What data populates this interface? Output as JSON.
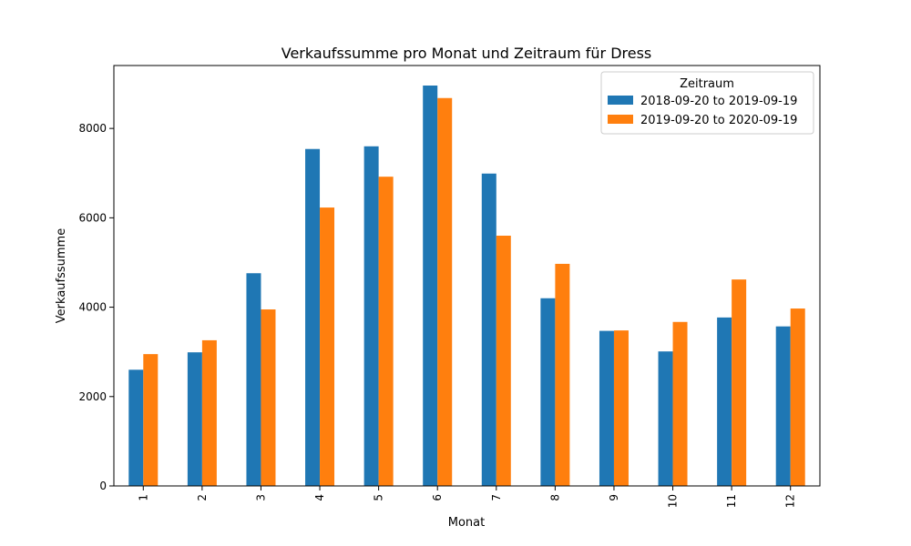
{
  "chart_data": {
    "type": "bar",
    "title": "Verkaufssumme pro Monat und Zeitraum für Dress",
    "xlabel": "Monat",
    "ylabel": "Verkaufssumme",
    "categories": [
      "1",
      "2",
      "3",
      "4",
      "5",
      "6",
      "7",
      "8",
      "9",
      "10",
      "11",
      "12"
    ],
    "series": [
      {
        "name": "2018-09-20 to 2019-09-19",
        "color": "#1f77b4",
        "values": [
          2600,
          2990,
          4760,
          7540,
          7600,
          8960,
          6990,
          4200,
          3470,
          3010,
          3770,
          3570
        ]
      },
      {
        "name": "2019-09-20 to 2020-09-19",
        "color": "#ff7f0e",
        "values": [
          2950,
          3260,
          3950,
          6230,
          6920,
          8680,
          5600,
          4970,
          3480,
          3670,
          4620,
          3970
        ]
      }
    ],
    "yticks": [
      0,
      2000,
      4000,
      6000,
      8000
    ],
    "ylim": [
      0,
      9408
    ],
    "legend": {
      "title": "Zeitraum",
      "placement": "top-right"
    },
    "grid": false
  }
}
